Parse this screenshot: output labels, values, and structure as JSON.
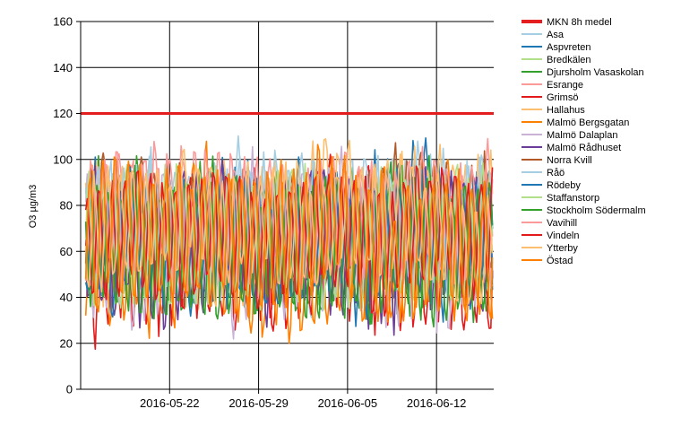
{
  "chart_data": {
    "type": "line",
    "title": "",
    "ylabel": "O3 µg/m3",
    "xlabel": "",
    "ylim": [
      0,
      160
    ],
    "yticks": [
      0,
      20,
      40,
      60,
      80,
      100,
      120,
      140,
      160
    ],
    "xlim": [
      "2016-05-15",
      "2016-06-16"
    ],
    "xticks": [
      "2016-05-22",
      "2016-05-29",
      "2016-06-05",
      "2016-06-12"
    ],
    "grid": true,
    "legend_position": "right",
    "threshold": {
      "name": "MKN 8h medel",
      "value": 120,
      "color": "#e41e1e"
    },
    "series": [
      {
        "name": "Asa",
        "color": "#a6cee3",
        "base": 68,
        "amp": 26
      },
      {
        "name": "Aspvreten",
        "color": "#1f78b4",
        "base": 66,
        "amp": 28
      },
      {
        "name": "Bredkälen",
        "color": "#b2df8a",
        "base": 62,
        "amp": 22
      },
      {
        "name": "Djursholm Vasaskolan",
        "color": "#33a02c",
        "base": 64,
        "amp": 26
      },
      {
        "name": "Esrange",
        "color": "#fb9a99",
        "base": 76,
        "amp": 20
      },
      {
        "name": "Grimsö",
        "color": "#e31a1c",
        "base": 60,
        "amp": 30
      },
      {
        "name": "Hallahus",
        "color": "#fdbf6f",
        "base": 70,
        "amp": 25
      },
      {
        "name": "Malmö Bergsgatan",
        "color": "#ff7f00",
        "base": 62,
        "amp": 30
      },
      {
        "name": "Malmö Dalaplan",
        "color": "#cab2d6",
        "base": 63,
        "amp": 28
      },
      {
        "name": "Malmö Rådhuset",
        "color": "#6a3d9a",
        "base": 62,
        "amp": 27
      },
      {
        "name": "Norra Kvill",
        "color": "#b15928",
        "base": 70,
        "amp": 22
      },
      {
        "name": "Råö",
        "color": "#a6cee3",
        "base": 72,
        "amp": 22
      },
      {
        "name": "Rödeby",
        "color": "#1f78b4",
        "base": 68,
        "amp": 24
      },
      {
        "name": "Staffanstorp",
        "color": "#b2df8a",
        "base": 64,
        "amp": 26
      },
      {
        "name": "Stockholm Södermalm",
        "color": "#33a02c",
        "base": 60,
        "amp": 26
      },
      {
        "name": "Vavihill",
        "color": "#fb9a99",
        "base": 74,
        "amp": 24
      },
      {
        "name": "Vindeln",
        "color": "#e31a1c",
        "base": 64,
        "amp": 24
      },
      {
        "name": "Ytterby",
        "color": "#fdbf6f",
        "base": 72,
        "amp": 22
      },
      {
        "name": "Östad",
        "color": "#ff7f00",
        "base": 66,
        "amp": 28
      }
    ]
  }
}
